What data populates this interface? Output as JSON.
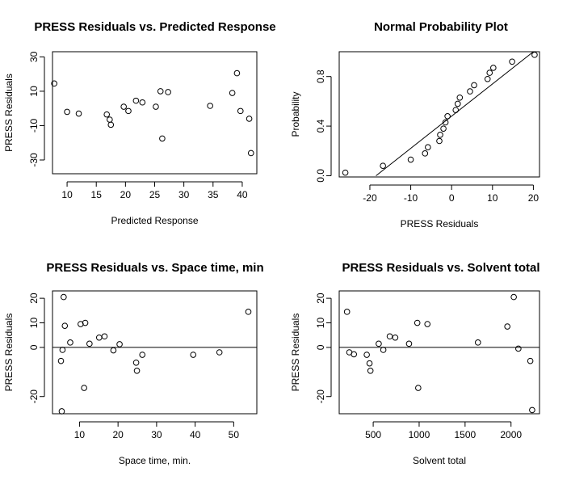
{
  "chart_data": [
    {
      "type": "scatter",
      "title": "PRESS Residuals vs. Predicted Response",
      "xlabel": "Predicted Response",
      "ylabel": "PRESS Residuals",
      "xlim": [
        7.5,
        42.5
      ],
      "ylim": [
        -38,
        33
      ],
      "xticks": [
        10,
        15,
        20,
        25,
        30,
        35,
        40
      ],
      "yticks": [
        -30,
        -10,
        10,
        30
      ],
      "points": [
        [
          7.8,
          14.5
        ],
        [
          10.0,
          -2.0
        ],
        [
          12.0,
          -3.0
        ],
        [
          16.8,
          -3.5
        ],
        [
          17.3,
          -6.5
        ],
        [
          17.5,
          -9.5
        ],
        [
          19.7,
          1.0
        ],
        [
          20.5,
          -1.5
        ],
        [
          21.8,
          4.5
        ],
        [
          22.9,
          3.5
        ],
        [
          25.2,
          1.0
        ],
        [
          26.0,
          10.0
        ],
        [
          26.3,
          -17.5
        ],
        [
          27.3,
          9.5
        ],
        [
          34.5,
          1.5
        ],
        [
          38.3,
          9.0
        ],
        [
          39.1,
          20.5
        ],
        [
          39.7,
          -1.5
        ],
        [
          41.2,
          -6.0
        ],
        [
          41.5,
          -26.0
        ]
      ]
    },
    {
      "type": "scatter",
      "title": "Normal Probability Plot",
      "xlabel": "PRESS Residuals",
      "ylabel": "Probability",
      "xlim": [
        -27.5,
        21.5
      ],
      "ylim": [
        -0.01,
        1.0
      ],
      "xticks": [
        -20,
        -10,
        0,
        10,
        20
      ],
      "yticks": [
        0.0,
        0.4,
        0.8
      ],
      "reference_line": [
        [
          -18.5,
          0.0
        ],
        [
          20.0,
          1.0
        ]
      ],
      "points": [
        [
          -26.0,
          0.025
        ],
        [
          -16.8,
          0.08
        ],
        [
          -10.0,
          0.13
        ],
        [
          -6.5,
          0.18
        ],
        [
          -5.8,
          0.23
        ],
        [
          -3.0,
          0.28
        ],
        [
          -2.8,
          0.33
        ],
        [
          -2.0,
          0.38
        ],
        [
          -1.5,
          0.43
        ],
        [
          -1.0,
          0.48
        ],
        [
          1.0,
          0.53
        ],
        [
          1.5,
          0.58
        ],
        [
          2.0,
          0.63
        ],
        [
          4.5,
          0.68
        ],
        [
          5.5,
          0.73
        ],
        [
          8.8,
          0.78
        ],
        [
          9.3,
          0.83
        ],
        [
          10.2,
          0.87
        ],
        [
          14.8,
          0.92
        ],
        [
          20.3,
          0.975
        ]
      ]
    },
    {
      "type": "scatter",
      "title": "PRESS Residuals vs. Space time, min",
      "xlabel": "Space time, min.",
      "ylabel": "PRESS Residuals",
      "xlim": [
        3.0,
        56.0
      ],
      "ylim": [
        -27,
        23
      ],
      "xticks": [
        10,
        20,
        30,
        40,
        50
      ],
      "yticks": [
        -20,
        0,
        10,
        20
      ],
      "reference_line": [
        [
          3.0,
          0
        ],
        [
          56.0,
          0
        ]
      ],
      "points": [
        [
          5.2,
          -5.5
        ],
        [
          5.4,
          -26.0
        ],
        [
          5.6,
          -1.0
        ],
        [
          5.9,
          20.5
        ],
        [
          6.2,
          8.8
        ],
        [
          7.6,
          2.0
        ],
        [
          10.3,
          9.5
        ],
        [
          11.2,
          -16.5
        ],
        [
          11.5,
          10.0
        ],
        [
          12.6,
          1.5
        ],
        [
          15.1,
          4.0
        ],
        [
          16.5,
          4.5
        ],
        [
          18.8,
          -1.2
        ],
        [
          20.4,
          1.3
        ],
        [
          24.7,
          -6.2
        ],
        [
          24.9,
          -9.5
        ],
        [
          26.3,
          -3.0
        ],
        [
          39.5,
          -3.0
        ],
        [
          46.3,
          -2.0
        ],
        [
          53.8,
          14.5
        ]
      ]
    },
    {
      "type": "scatter",
      "title": "PRESS Residuals vs. Solvent total",
      "xlabel": "Solvent total",
      "ylabel": "PRESS Residuals",
      "xlim": [
        130,
        2310
      ],
      "ylim": [
        -27,
        23
      ],
      "xticks": [
        500,
        1000,
        1500,
        2000
      ],
      "yticks": [
        -20,
        0,
        10,
        20
      ],
      "reference_line": [
        [
          130,
          0
        ],
        [
          2310,
          0
        ]
      ],
      "points": [
        [
          215,
          14.5
        ],
        [
          240,
          -2.0
        ],
        [
          290,
          -2.8
        ],
        [
          430,
          -3.0
        ],
        [
          460,
          -6.5
        ],
        [
          470,
          -9.5
        ],
        [
          560,
          1.5
        ],
        [
          610,
          -1.0
        ],
        [
          680,
          4.5
        ],
        [
          740,
          4.0
        ],
        [
          890,
          1.5
        ],
        [
          980,
          10.0
        ],
        [
          990,
          -16.5
        ],
        [
          1090,
          9.5
        ],
        [
          1640,
          2.0
        ],
        [
          1960,
          8.5
        ],
        [
          2030,
          20.5
        ],
        [
          2080,
          -0.5
        ],
        [
          2210,
          -5.5
        ],
        [
          2230,
          -25.5
        ]
      ]
    }
  ]
}
